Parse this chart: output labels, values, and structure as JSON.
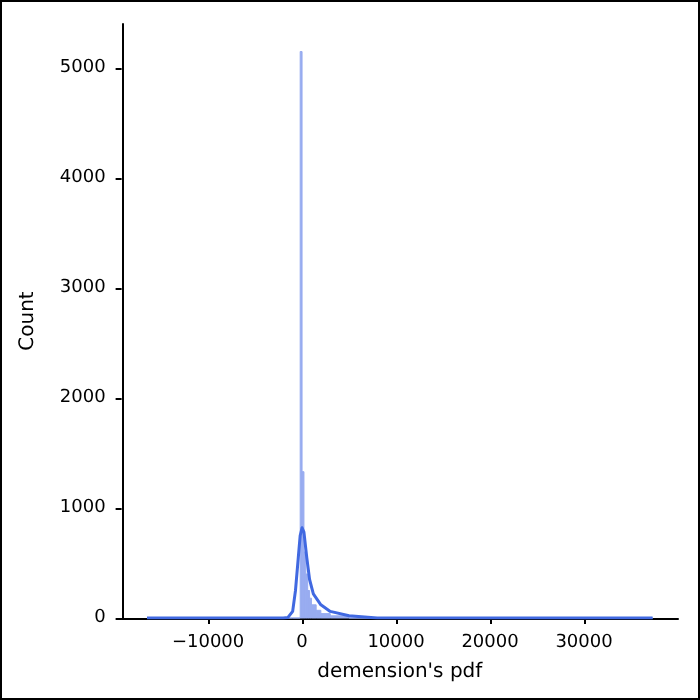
{
  "chart_data": {
    "type": "histogram",
    "xlabel": "demension's pdf",
    "ylabel": "Count",
    "bins": [
      -16500,
      -1000,
      -200,
      0,
      200,
      400,
      600,
      800,
      1000,
      1500,
      2000,
      3000,
      5000,
      10000,
      37300
    ],
    "values": [
      0,
      0,
      5150,
      1330,
      600,
      400,
      250,
      180,
      120,
      70,
      40,
      20,
      0,
      0
    ],
    "color": "#98acf0",
    "series": [
      {
        "type": "line",
        "color": "#4169e1",
        "x": [
          -16500,
          -2000,
          -1500,
          -1000,
          -700,
          -400,
          -200,
          0,
          200,
          500,
          800,
          1200,
          2000,
          3000,
          5000,
          8000,
          12000,
          20000,
          37300
        ],
        "values": [
          0,
          0,
          5,
          60,
          250,
          550,
          750,
          820,
          780,
          550,
          350,
          220,
          120,
          60,
          20,
          0,
          0,
          0,
          0
        ]
      }
    ],
    "xlim": [
      -19200,
      40000
    ],
    "xticks": [
      -10000,
      0,
      10000,
      20000,
      30000
    ],
    "ylim": [
      0,
      5400
    ],
    "yticks": [
      0,
      1000,
      2000,
      3000,
      4000,
      5000
    ]
  }
}
